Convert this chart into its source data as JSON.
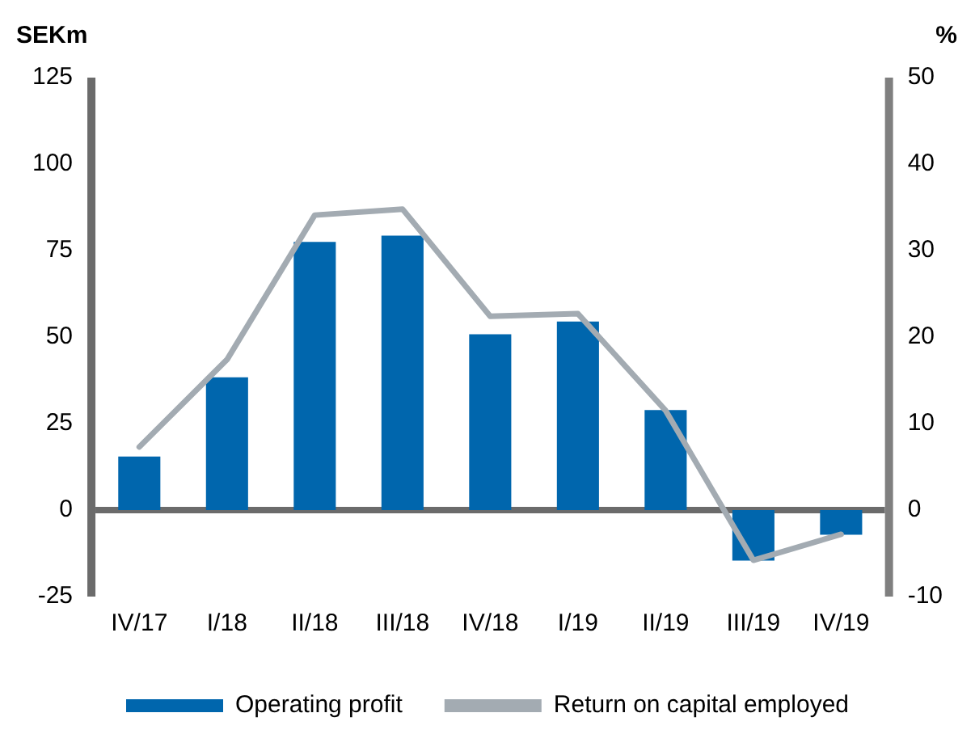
{
  "chart_data": {
    "type": "bar",
    "ylabel": "SEKm",
    "y2label": "%",
    "categories": [
      "IV/17",
      "I/18",
      "II/18",
      "III/18",
      "IV/18",
      "I/19",
      "II/19",
      "III/19",
      "IV/19"
    ],
    "series": [
      {
        "name": "Operating profit",
        "color": "#0066ad",
        "values": [
          15.5,
          38.4,
          77.5,
          79.3,
          50.8,
          54.5,
          28.9,
          -14.6,
          -7.1
        ]
      },
      {
        "name": "Return on capital employed",
        "type": "line",
        "axis": "y2",
        "color": "#a3abb2",
        "marker": "none",
        "values": [
          7.3,
          17.4,
          34.1,
          34.8,
          22.4,
          22.7,
          11.5,
          -5.8,
          -2.8
        ]
      }
    ],
    "ylim": [
      -25,
      125
    ],
    "yticks": [
      -25,
      0,
      25,
      50,
      75,
      100,
      125
    ],
    "y2lim": [
      -10,
      50
    ],
    "y2ticks": [
      -10,
      0,
      10,
      20,
      30,
      40,
      50
    ],
    "ref_lines": [
      {
        "axis": "y",
        "value": 0,
        "color": "#6b6b6b"
      }
    ],
    "grid": false,
    "legend": "bottom"
  }
}
